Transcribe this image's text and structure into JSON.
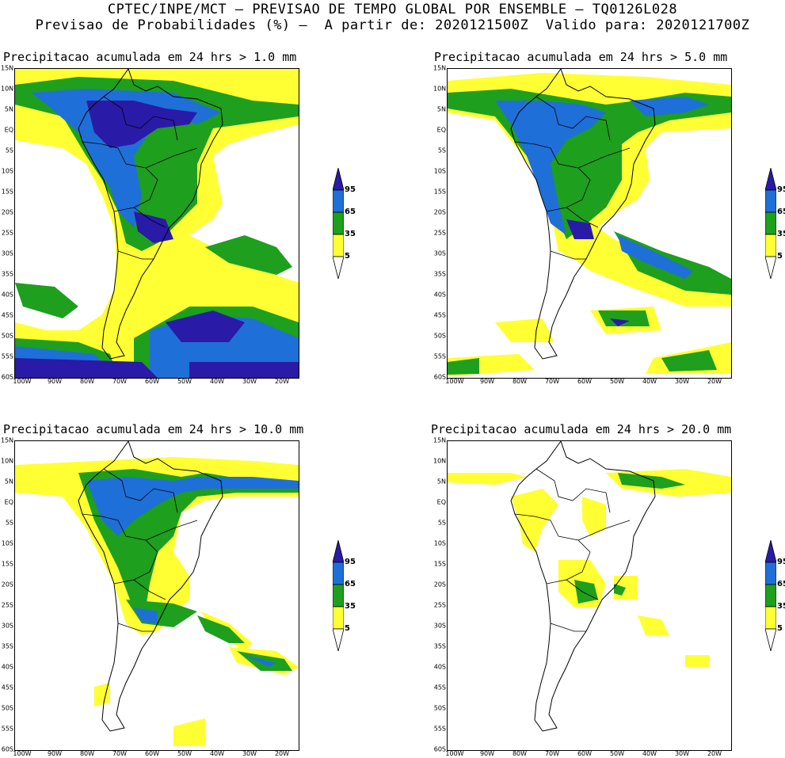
{
  "header": {
    "line1": "CPTEC/INPE/MCT — PREVISAO DE TEMPO GLOBAL POR ENSEMBLE — TQ0126L028",
    "line2": "Previsao de Probabilidades (%) —  A partir de: 2020121500Z  Valido para: 2020121700Z"
  },
  "panels": [
    {
      "title": "Precipitacao acumulada em 24 hrs > 1.0 mm"
    },
    {
      "title": "Precipitacao acumulada em 24 hrs > 5.0 mm"
    },
    {
      "title": "Precipitacao acumulada em 24 hrs > 10.0 mm"
    },
    {
      "title": "Precipitacao acumulada em 24 hrs > 20.0 mm"
    }
  ],
  "axes": {
    "lat_labels": [
      "15N",
      "10N",
      "5N",
      "EQ",
      "5S",
      "10S",
      "15S",
      "20S",
      "25S",
      "30S",
      "35S",
      "40S",
      "45S",
      "50S",
      "55S",
      "60S"
    ],
    "lon_labels": [
      "100W",
      "90W",
      "80W",
      "70W",
      "60W",
      "50W",
      "40W",
      "30W",
      "20W"
    ]
  },
  "colorbar": {
    "labels": [
      "95",
      "65",
      "35",
      "5"
    ],
    "colors": {
      "c5": "#ffff33",
      "c35": "#1e9f1e",
      "c65": "#1f6fd8",
      "c95": "#2a1aa8"
    }
  }
}
